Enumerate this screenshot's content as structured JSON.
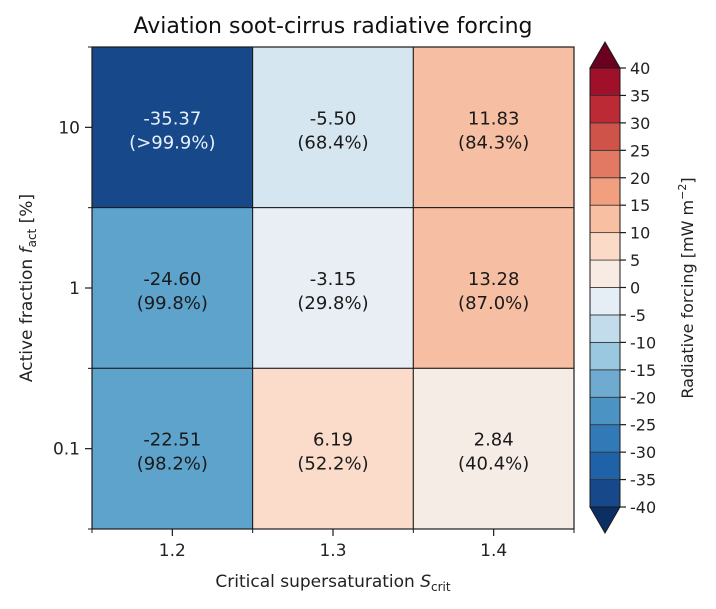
{
  "chart_data": {
    "type": "heatmap",
    "title": "Aviation soot-cirrus radiative forcing",
    "xlabel": "Critical supersaturation S_crit",
    "xlabel_main": "Critical supersaturation ",
    "xlabel_symbol": "S",
    "xlabel_sub": "crit",
    "ylabel": "Active fraction f_act [%]",
    "ylabel_main": "Active fraction ",
    "ylabel_symbol": "f",
    "ylabel_sub": "act",
    "ylabel_unit": " [%]",
    "x_categories": [
      "1.2",
      "1.3",
      "1.4"
    ],
    "y_categories": [
      "10",
      "1",
      "0.1"
    ],
    "values": [
      [
        -35.37,
        -5.5,
        11.83
      ],
      [
        -24.6,
        -3.15,
        13.28
      ],
      [
        -22.51,
        6.19,
        2.84
      ]
    ],
    "value_labels": [
      [
        "-35.37",
        "-5.50",
        "11.83"
      ],
      [
        "-24.60",
        "-3.15",
        "13.28"
      ],
      [
        "-22.51",
        "6.19",
        "2.84"
      ]
    ],
    "percent_labels": [
      [
        "(>99.9%)",
        "(68.4%)",
        "(84.3%)"
      ],
      [
        "(99.8%)",
        "(29.8%)",
        "(87.0%)"
      ],
      [
        "(98.2%)",
        "(52.2%)",
        "(40.4%)"
      ]
    ],
    "colorbar": {
      "label": "Radiative forcing [mW m",
      "label_sup": "−2",
      "label_end": "]",
      "range": [
        -40,
        40
      ],
      "step": 5,
      "extend": "both",
      "ticks": [
        "40",
        "35",
        "30",
        "25",
        "20",
        "15",
        "10",
        "5",
        "0",
        "-5",
        "-10",
        "-15",
        "-20",
        "-25",
        "-30",
        "-35",
        "-40"
      ],
      "bins": [
        {
          "from": -40,
          "to": -35,
          "color": "#17498a"
        },
        {
          "from": -35,
          "to": -30,
          "color": "#1f62a8"
        },
        {
          "from": -30,
          "to": -25,
          "color": "#3279b8"
        },
        {
          "from": -25,
          "to": -20,
          "color": "#4b93c3"
        },
        {
          "from": -20,
          "to": -15,
          "color": "#6fabd1"
        },
        {
          "from": -15,
          "to": -10,
          "color": "#9ac8e0"
        },
        {
          "from": -10,
          "to": -5,
          "color": "#c3dcec"
        },
        {
          "from": -5,
          "to": 0,
          "color": "#e6eef5"
        },
        {
          "from": 0,
          "to": 5,
          "color": "#f7ebe3"
        },
        {
          "from": 5,
          "to": 10,
          "color": "#fbdbc8"
        },
        {
          "from": 10,
          "to": 15,
          "color": "#f8bfa3"
        },
        {
          "from": 15,
          "to": 20,
          "color": "#f19f7f"
        },
        {
          "from": 20,
          "to": 25,
          "color": "#e27a63"
        },
        {
          "from": 25,
          "to": 30,
          "color": "#cf5349"
        },
        {
          "from": 30,
          "to": 35,
          "color": "#bb2a35"
        },
        {
          "from": 35,
          "to": 40,
          "color": "#a11029"
        }
      ],
      "under_color": "#0c2f63",
      "over_color": "#6b0020"
    },
    "cell_colors": [
      [
        "#17498a",
        "#d6e6f1",
        "#f6bea2"
      ],
      [
        "#5da3cc",
        "#e8eef4",
        "#f6bea2"
      ],
      [
        "#5da3cc",
        "#fbdccb",
        "#f6ece6"
      ]
    ],
    "text_colors": [
      [
        "#e8f0fa",
        "#1a1a1a",
        "#1a1a1a"
      ],
      [
        "#1a1a1a",
        "#1a1a1a",
        "#1a1a1a"
      ],
      [
        "#1a1a1a",
        "#1a1a1a",
        "#1a1a1a"
      ]
    ],
    "grid": false
  }
}
